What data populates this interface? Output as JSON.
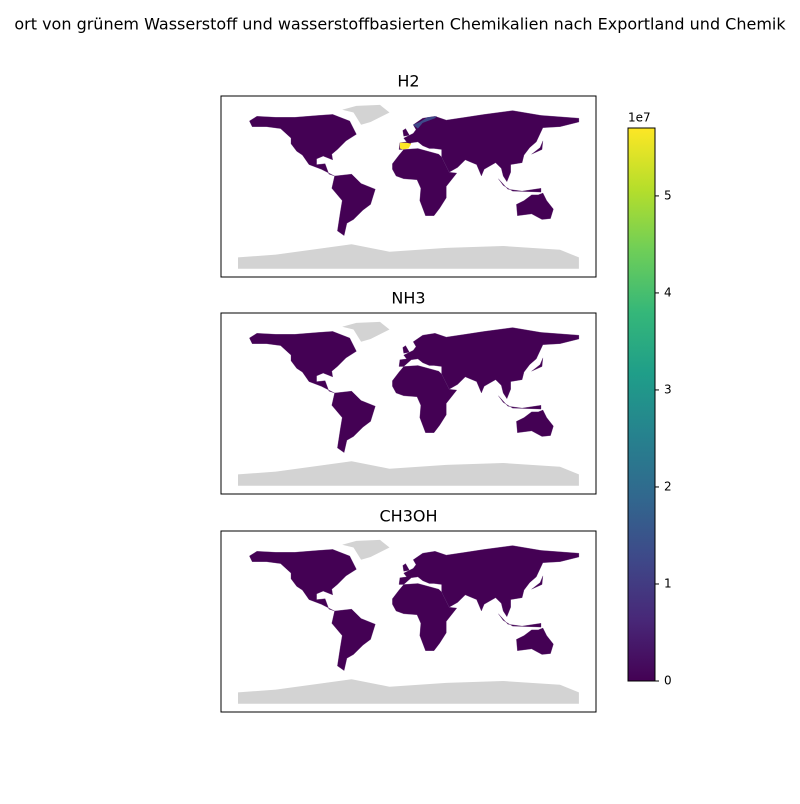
{
  "title": "ort von grünem Wasserstoff und wasserstoffbasierten Chemikalien nach Exportland und Chemik",
  "panels": [
    {
      "title": "H2",
      "values": [
        5.6,
        1.5
      ]
    },
    {
      "title": "NH3",
      "values": []
    },
    {
      "title": "CH3OH",
      "values": []
    }
  ],
  "colorbar": {
    "colormap": "viridis",
    "lim": [
      0,
      5.7
    ],
    "ticks": [
      0,
      1,
      2,
      3,
      4,
      5
    ],
    "offset_label": "1e7"
  }
}
